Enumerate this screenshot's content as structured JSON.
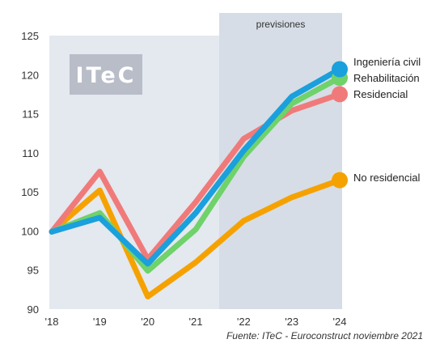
{
  "chart_data": {
    "type": "line",
    "title": "",
    "xlabel": "",
    "ylabel": "",
    "categories": [
      "'18",
      "'19",
      "'20",
      "'21",
      "'22",
      "'23",
      "'24"
    ],
    "ylim": [
      90,
      125
    ],
    "yticks": [
      90,
      95,
      100,
      105,
      110,
      115,
      120,
      125
    ],
    "grid": false,
    "forecast_label": "previsiones",
    "forecast_from": "'22",
    "series": [
      {
        "name": "Ingeniería civil",
        "color": "#1aa0dc",
        "values": [
          99.9,
          101.7,
          95.8,
          102.3,
          110.3,
          117.2,
          120.7
        ]
      },
      {
        "name": "Rehabilitación",
        "color": "#6fd26a",
        "values": [
          99.9,
          102.3,
          94.9,
          100.2,
          109.5,
          116.3,
          119.6
        ]
      },
      {
        "name": "Residencial",
        "color": "#f07a7a",
        "values": [
          99.9,
          107.6,
          96.4,
          103.7,
          111.8,
          115.4,
          117.5
        ]
      },
      {
        "name": "No residencial",
        "color": "#f5a200",
        "values": [
          99.9,
          105.2,
          91.6,
          96.0,
          101.3,
          104.3,
          106.5
        ]
      }
    ]
  },
  "logo": "ITeC",
  "source": "Fuente: ITeC - Euroconstruct noviembre 2021"
}
